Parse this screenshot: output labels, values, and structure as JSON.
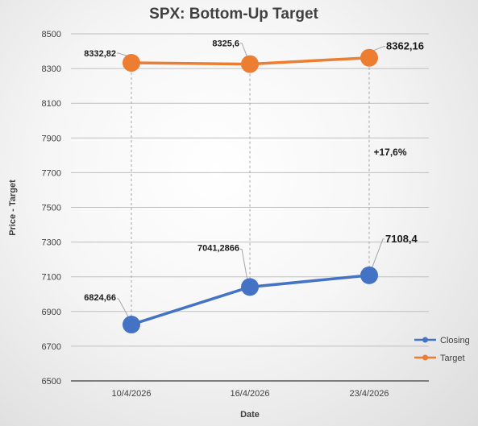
{
  "chart_data": {
    "type": "line",
    "title": "SPX: Bottom-Up Target",
    "xlabel": "Date",
    "ylabel": "Price - Target",
    "categories": [
      "10/4/2026",
      "16/4/2026",
      "23/4/2026"
    ],
    "ylim": [
      6500,
      8500
    ],
    "yticks": [
      6500,
      6700,
      6900,
      7100,
      7300,
      7500,
      7700,
      7900,
      8100,
      8300,
      8500
    ],
    "ytick_labels": [
      "6500",
      "6700",
      "6900",
      "7100",
      "7300",
      "7500",
      "7700",
      "7900",
      "8100",
      "8300",
      "8500"
    ],
    "grid": true,
    "legend_position": "bottom-right",
    "series": [
      {
        "name": "Closing",
        "color": "#4472C4",
        "values": [
          6824.66,
          7041.2866,
          7108.4
        ],
        "labels": [
          "6824,66",
          "7041,2866",
          "7108,4"
        ]
      },
      {
        "name": "Target",
        "color": "#ED7D31",
        "values": [
          8332.82,
          8325.6,
          8362.16
        ],
        "labels": [
          "8332,82",
          "8325,6",
          "8362,16"
        ]
      }
    ],
    "annotations": [
      {
        "text": "+17,6%",
        "category": "23/4/2026",
        "y": 7800
      }
    ]
  }
}
